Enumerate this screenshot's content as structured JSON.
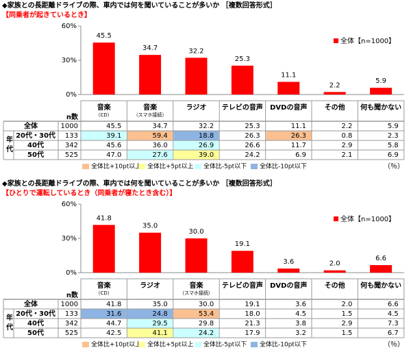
{
  "chart_data": [
    {
      "type": "bar",
      "title": "◆家族との長距離ドライブの際、車内では何を聞いていることが多いか ［複数回答形式］",
      "subtitle": "【同乗者が起きているとき】",
      "categories": [
        [
          "音楽",
          "（CD）"
        ],
        [
          "音楽",
          "（スマホ接続）"
        ],
        "ラジオ",
        "テレビの音声",
        "DVDの音声",
        "その他",
        "何も聞かない"
      ],
      "series": [
        {
          "name": "全体【n=1000】",
          "color": "#ff0000",
          "values": [
            45.5,
            34.7,
            32.2,
            25.3,
            11.1,
            2.2,
            5.9
          ],
          "value_labels": [
            "45.5",
            "34.7",
            "32.2",
            "25.3",
            "11.1",
            "2.2",
            "5.9"
          ]
        }
      ],
      "ylim": [
        0,
        60
      ],
      "yticks": [
        {
          "value": 0,
          "label": "0%"
        },
        {
          "value": 30,
          "label": "30%"
        },
        {
          "value": 60,
          "label": "60%"
        }
      ],
      "legend": "upper-right"
    },
    {
      "type": "bar",
      "title": "◆家族との長距離ドライブの際、車内では何を聞いていることが多いか ［複数回答形式］",
      "subtitle": "【ひとりで運転しているとき（同乗者が寝たとき含む）】",
      "categories": [
        [
          "音楽",
          "（CD）"
        ],
        "ラジオ",
        [
          "音楽",
          "（スマホ接続）"
        ],
        "テレビの音声",
        "DVDの音声",
        "その他",
        "何も聞かない"
      ],
      "series": [
        {
          "name": "全体【n=1000】",
          "color": "#ff0000",
          "values": [
            41.8,
            35.0,
            30.0,
            19.1,
            3.6,
            2.0,
            6.6
          ],
          "value_labels": [
            "41.8",
            "35.0",
            "30.0",
            "19.1",
            "3.6",
            "2.0",
            "6.6"
          ]
        }
      ],
      "ylim": [
        0,
        60
      ],
      "yticks": [
        {
          "value": 0,
          "label": "0%"
        },
        {
          "value": 30,
          "label": "30%"
        },
        {
          "value": 60,
          "label": "60%"
        }
      ],
      "legend": "upper-right"
    }
  ],
  "tables": [
    {
      "n_header": "n数",
      "group_label": "年代",
      "rows": [
        {
          "label": "全体",
          "n": 1000,
          "values": [
            "45.5",
            "34.7",
            "32.2",
            "25.3",
            "11.1",
            "2.2",
            "5.9"
          ],
          "colors": [
            null,
            null,
            null,
            null,
            null,
            null,
            null
          ]
        },
        {
          "label": "20代・30代",
          "n": 133,
          "values": [
            "39.1",
            "59.4",
            "18.8",
            "26.3",
            "26.3",
            "0.8",
            "2.3"
          ],
          "colors": [
            "#ccffff",
            "#fac090",
            "#8db4e2",
            null,
            "#fac090",
            null,
            null
          ]
        },
        {
          "label": "40代",
          "n": 342,
          "values": [
            "45.6",
            "36.0",
            "26.9",
            "26.6",
            "11.7",
            "2.9",
            "5.8"
          ],
          "colors": [
            null,
            null,
            "#ccffff",
            null,
            null,
            null,
            null
          ]
        },
        {
          "label": "50代",
          "n": 525,
          "values": [
            "47.0",
            "27.6",
            "39.0",
            "24.2",
            "6.9",
            "2.1",
            "6.9"
          ],
          "colors": [
            null,
            "#ccffff",
            "#ffff99",
            null,
            null,
            null,
            null
          ]
        }
      ],
      "legend": [
        {
          "label": "全体比+10pt以上",
          "color": "#fac090"
        },
        {
          "label": "全体比+5pt以上",
          "color": "#ffff99"
        },
        {
          "label": "全体比-5pt以下",
          "color": "#ccffff"
        },
        {
          "label": "全体比-10pt以下",
          "color": "#8db4e2"
        }
      ],
      "unit": "（％）"
    },
    {
      "n_header": "n数",
      "group_label": "年代",
      "rows": [
        {
          "label": "全体",
          "n": 1000,
          "values": [
            "41.8",
            "35.0",
            "30.0",
            "19.1",
            "3.6",
            "2.0",
            "6.6"
          ],
          "colors": [
            null,
            null,
            null,
            null,
            null,
            null,
            null
          ]
        },
        {
          "label": "20代・30代",
          "n": 133,
          "values": [
            "31.6",
            "24.8",
            "53.4",
            "18.0",
            "4.5",
            "1.5",
            "4.5"
          ],
          "colors": [
            "#8db4e2",
            "#8db4e2",
            "#fac090",
            null,
            null,
            null,
            null
          ]
        },
        {
          "label": "40代",
          "n": 342,
          "values": [
            "44.7",
            "29.5",
            "29.8",
            "21.3",
            "3.8",
            "2.9",
            "7.3"
          ],
          "colors": [
            null,
            "#ccffff",
            null,
            null,
            null,
            null,
            null
          ]
        },
        {
          "label": "50代",
          "n": 525,
          "values": [
            "42.5",
            "41.1",
            "24.2",
            "17.9",
            "3.2",
            "1.5",
            "6.7"
          ],
          "colors": [
            null,
            "#ffff99",
            "#ccffff",
            null,
            null,
            null,
            null
          ]
        }
      ],
      "legend": [
        {
          "label": "全体比+10pt以上",
          "color": "#fac090"
        },
        {
          "label": "全体比+5pt以上",
          "color": "#ffff99"
        },
        {
          "label": "全体比-5pt以下",
          "color": "#ccffff"
        },
        {
          "label": "全体比-10pt以下",
          "color": "#8db4e2"
        }
      ],
      "unit": "（％）"
    }
  ]
}
